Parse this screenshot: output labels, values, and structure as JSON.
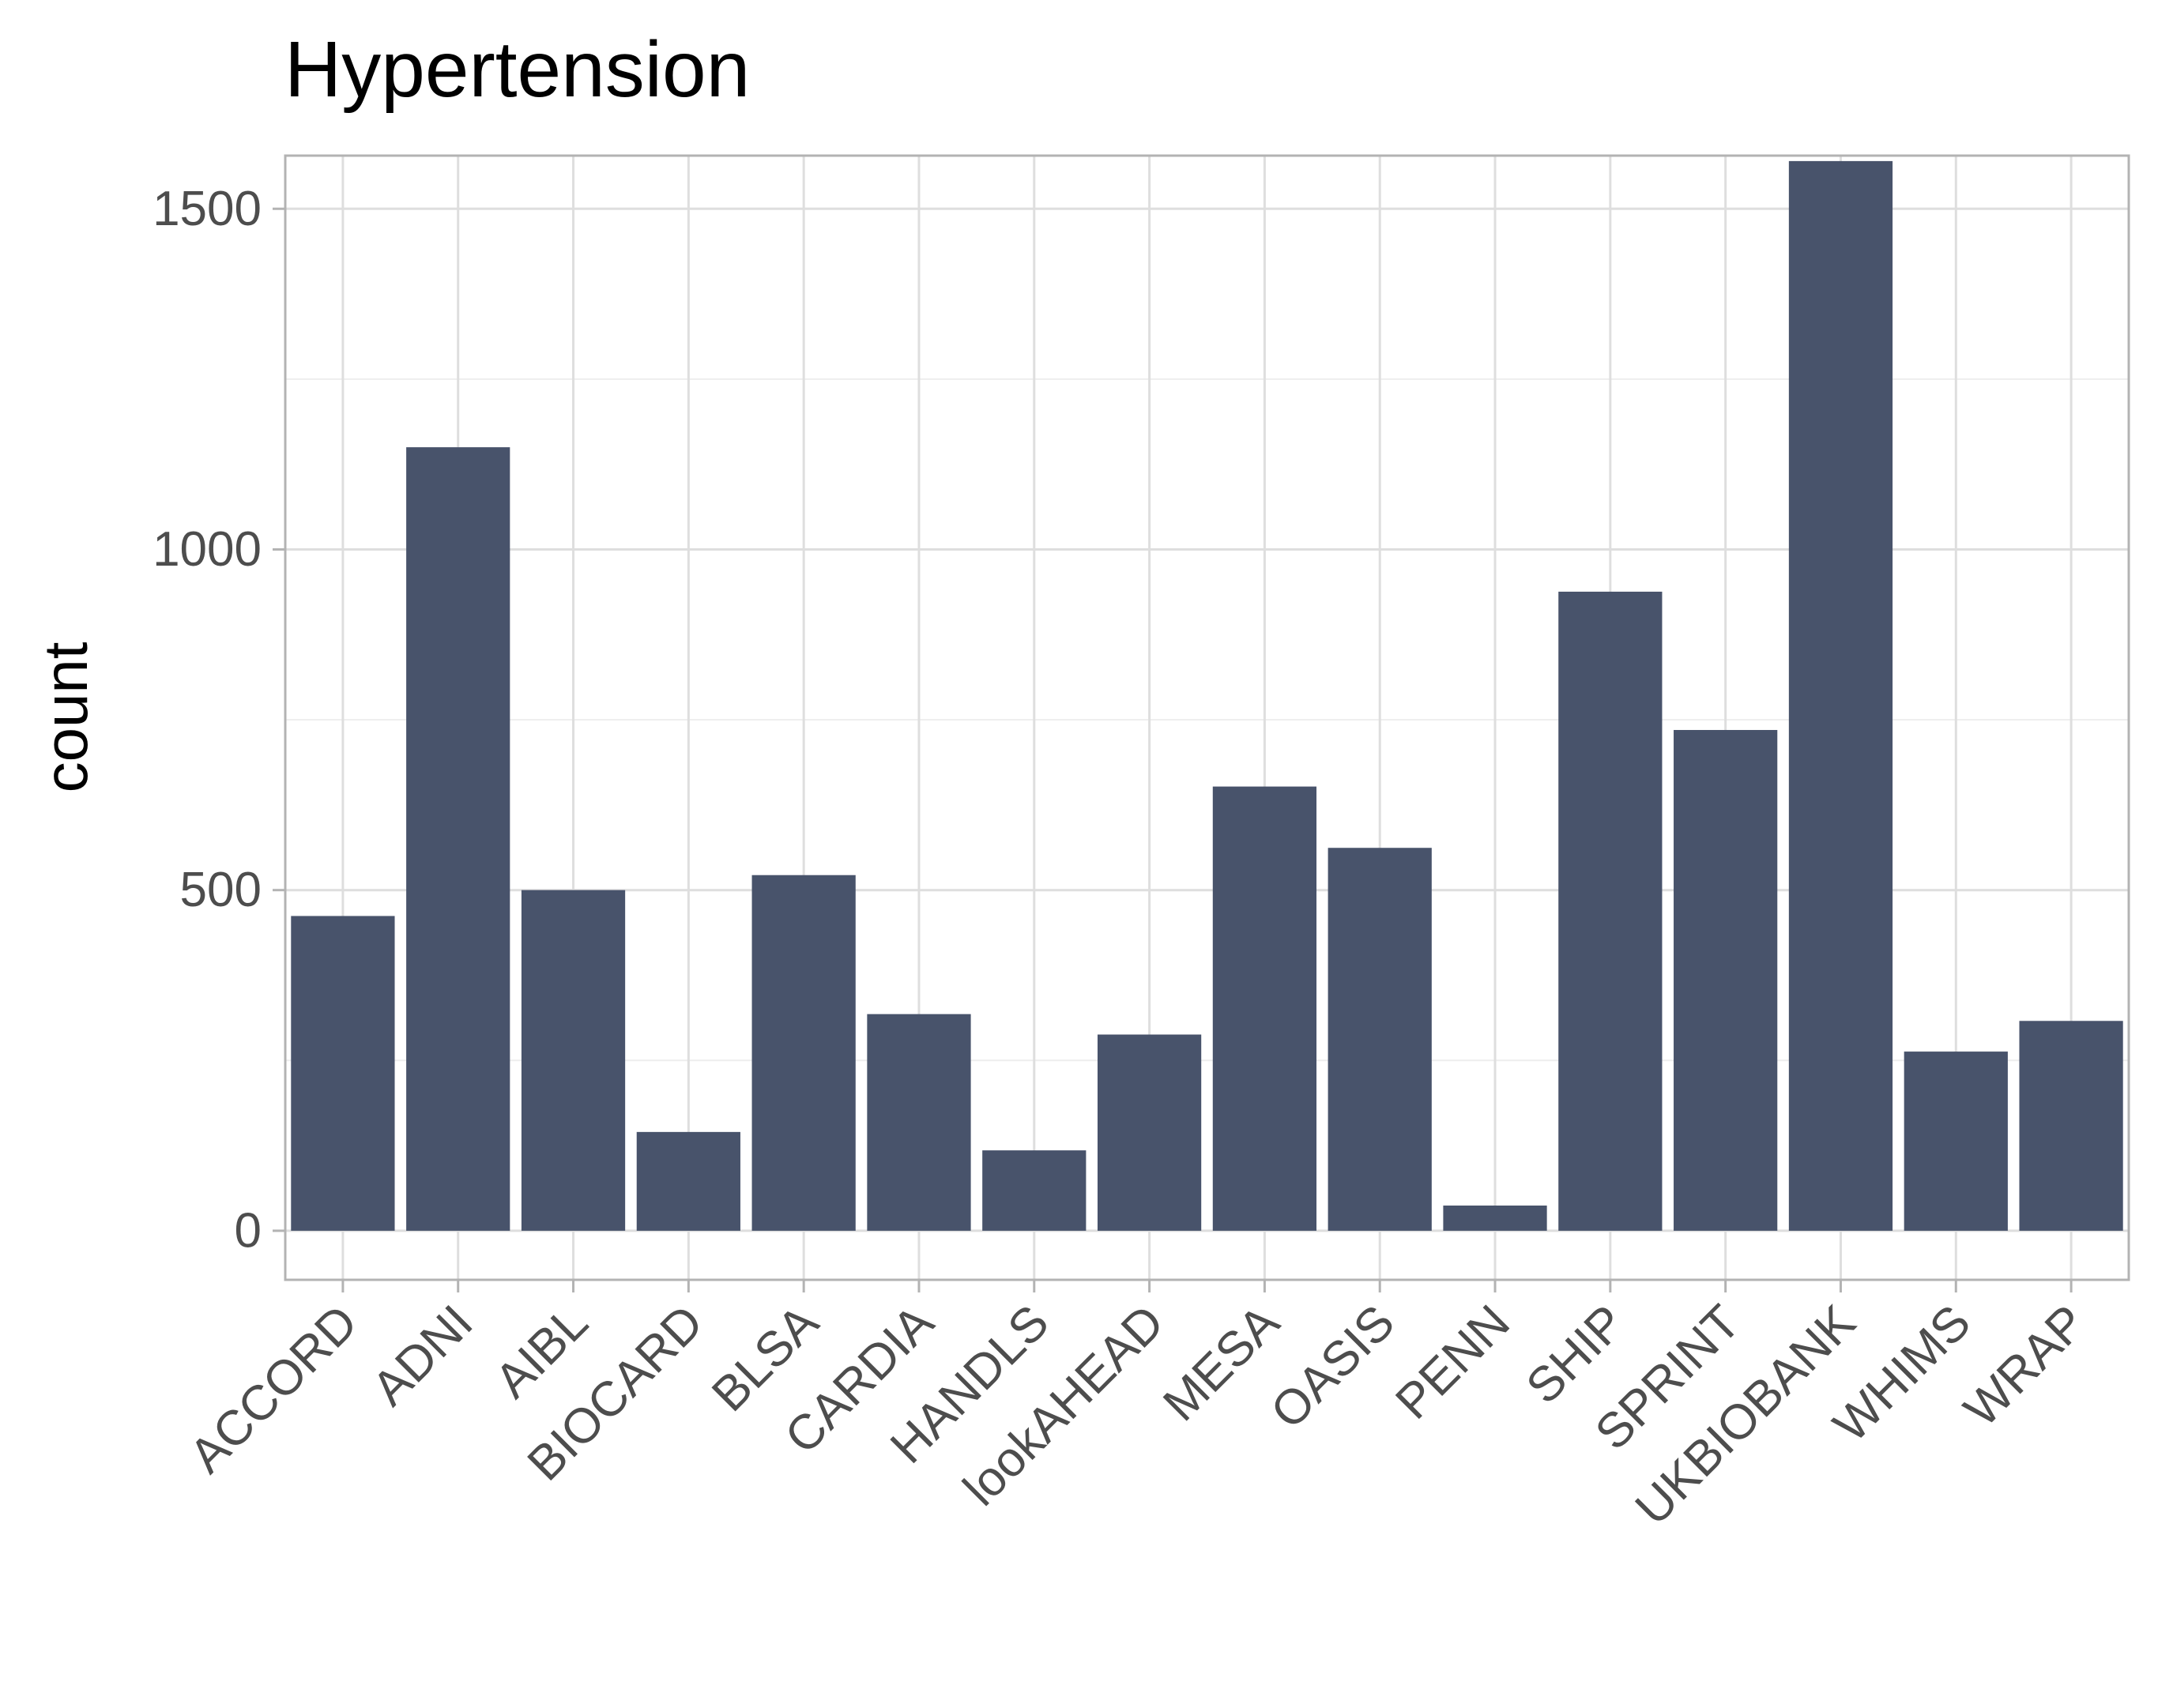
{
  "chart_data": {
    "type": "bar",
    "title": "Hypertension",
    "xlabel": "",
    "ylabel": "count",
    "categories": [
      "ACCORD",
      "ADNI",
      "AIBL",
      "BIOCARD",
      "BLSA",
      "CARDIA",
      "HANDLS",
      "lookAHEAD",
      "MESA",
      "OASIS",
      "PENN",
      "SHIP",
      "SPRINT",
      "UKBIOBANK",
      "WHIMS",
      "WRAP"
    ],
    "values": [
      462,
      1150,
      500,
      145,
      522,
      318,
      118,
      288,
      652,
      562,
      37,
      938,
      735,
      1570,
      263,
      308
    ],
    "yticks": [
      0,
      500,
      1000,
      1500
    ],
    "ylim": [
      -72,
      1578
    ],
    "grid": true,
    "colors": {
      "bar": "#48536b",
      "panel_border": "#b3b3b3",
      "grid_major": "#dedede",
      "grid_minor": "#eeeeee",
      "tick_text": "#4d4d4d"
    }
  }
}
